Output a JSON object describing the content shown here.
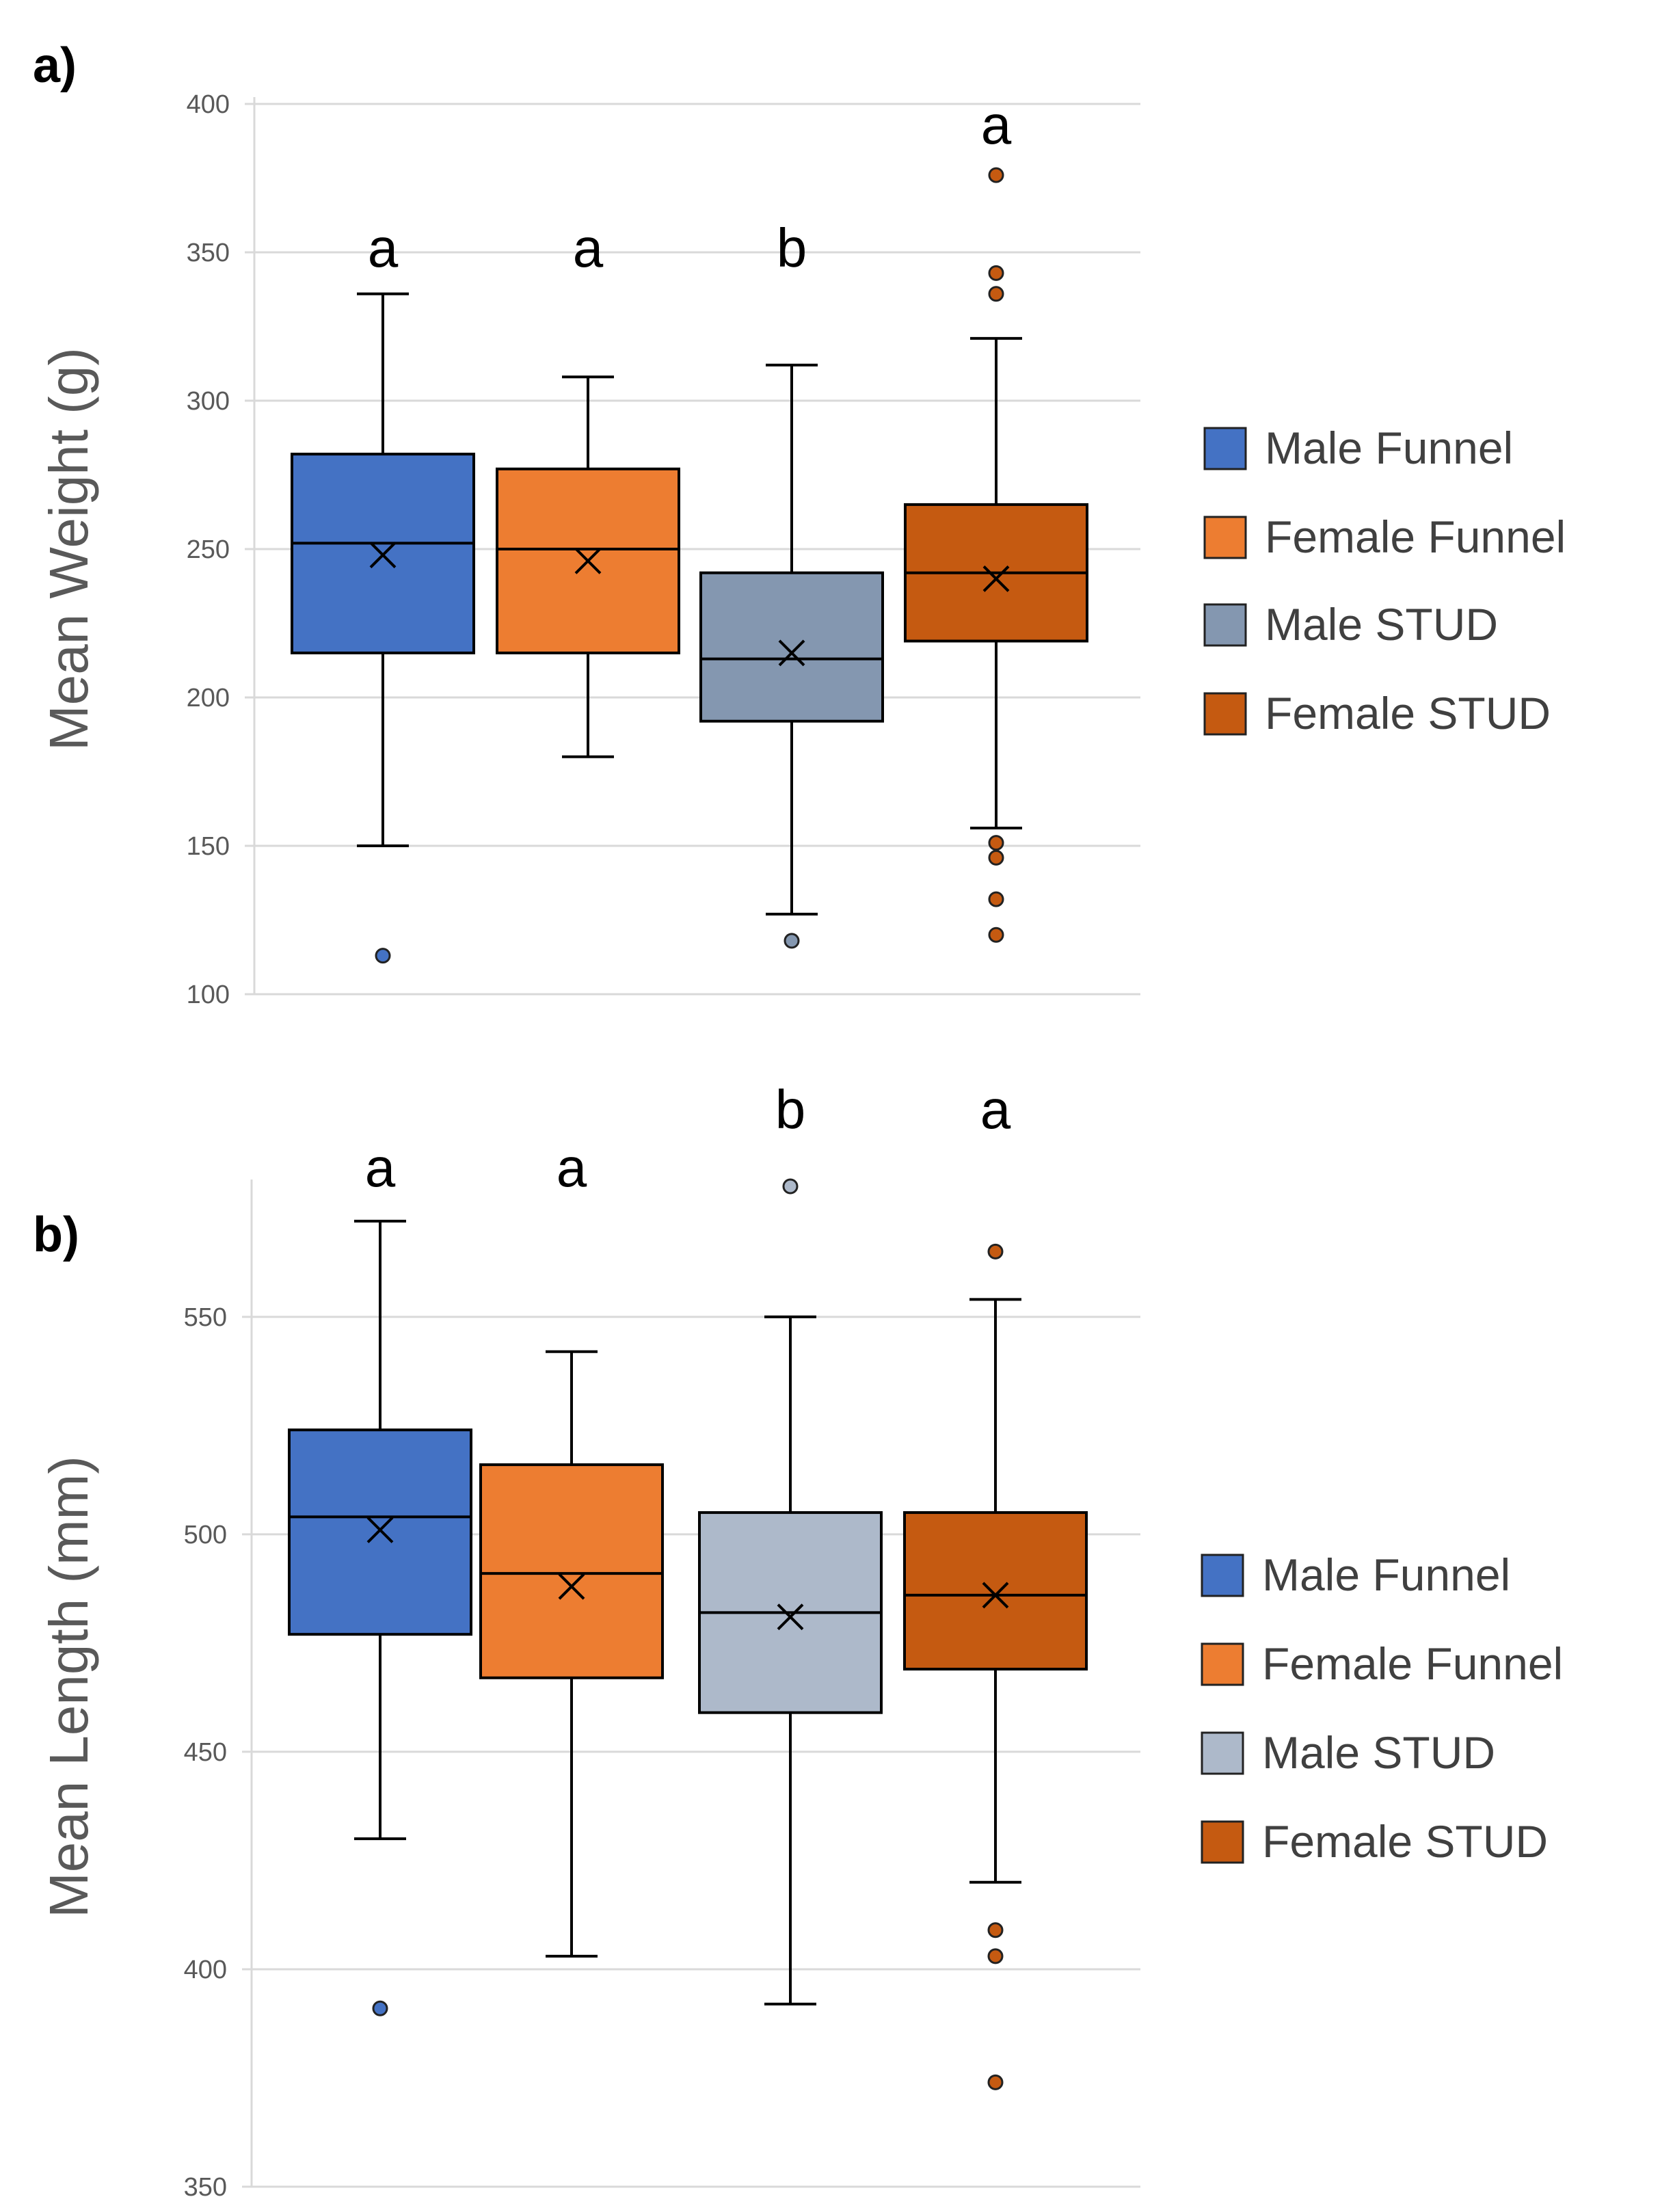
{
  "chart_data": [
    {
      "type": "box",
      "panel_label": "a)",
      "ylabel": "Mean Weight (g)",
      "xlabel": "",
      "ylim": [
        100,
        400
      ],
      "yticks": [
        100,
        150,
        200,
        250,
        300,
        350,
        400
      ],
      "grid": true,
      "legend_position": "right",
      "series": [
        {
          "name": "Male Funnel",
          "color": "#4472C4",
          "whisker_low": 150,
          "q1": 215,
          "median": 252,
          "q3": 282,
          "whisker_high": 336,
          "mean": 248,
          "outliers": [
            113
          ],
          "letter": "a"
        },
        {
          "name": "Female Funnel",
          "color": "#ED7D31",
          "whisker_low": 180,
          "q1": 215,
          "median": 250,
          "q3": 277,
          "whisker_high": 308,
          "mean": 246,
          "outliers": [],
          "letter": "a"
        },
        {
          "name": "Male STUD",
          "color": "#8497B0",
          "whisker_low": 127,
          "q1": 192,
          "median": 213,
          "q3": 242,
          "whisker_high": 312,
          "mean": 215,
          "outliers": [
            118
          ],
          "letter": "b"
        },
        {
          "name": "Female STUD",
          "color": "#C55A11",
          "whisker_low": 156,
          "q1": 219,
          "median": 242,
          "q3": 265,
          "whisker_high": 321,
          "mean": 240,
          "outliers": [
            376,
            343,
            336,
            151,
            146,
            132,
            120
          ],
          "letter": "a"
        }
      ]
    },
    {
      "type": "box",
      "panel_label": "b)",
      "ylabel": "Mean Length (mm)",
      "xlabel": "",
      "ylim": [
        350,
        580
      ],
      "yticks": [
        350,
        400,
        450,
        500,
        550
      ],
      "grid": true,
      "legend_position": "right",
      "series": [
        {
          "name": "Male Funnel",
          "color": "#4472C4",
          "whisker_low": 430,
          "q1": 477,
          "median": 504,
          "q3": 524,
          "whisker_high": 572,
          "mean": 501,
          "outliers": [
            391
          ],
          "letter": "a"
        },
        {
          "name": "Female Funnel",
          "color": "#ED7D31",
          "whisker_low": 403,
          "q1": 467,
          "median": 491,
          "q3": 516,
          "whisker_high": 542,
          "mean": 488,
          "outliers": [],
          "letter": "a"
        },
        {
          "name": "Male STUD",
          "color": "#ADB9CA",
          "whisker_low": 392,
          "q1": 459,
          "median": 482,
          "q3": 505,
          "whisker_high": 550,
          "mean": 481,
          "outliers": [
            580
          ],
          "letter": "b"
        },
        {
          "name": "Female STUD",
          "color": "#C55A11",
          "whisker_low": 420,
          "q1": 469,
          "median": 486,
          "q3": 505,
          "whisker_high": 554,
          "mean": 486,
          "outliers": [
            565,
            409,
            403,
            374
          ],
          "letter": "a"
        }
      ]
    }
  ]
}
